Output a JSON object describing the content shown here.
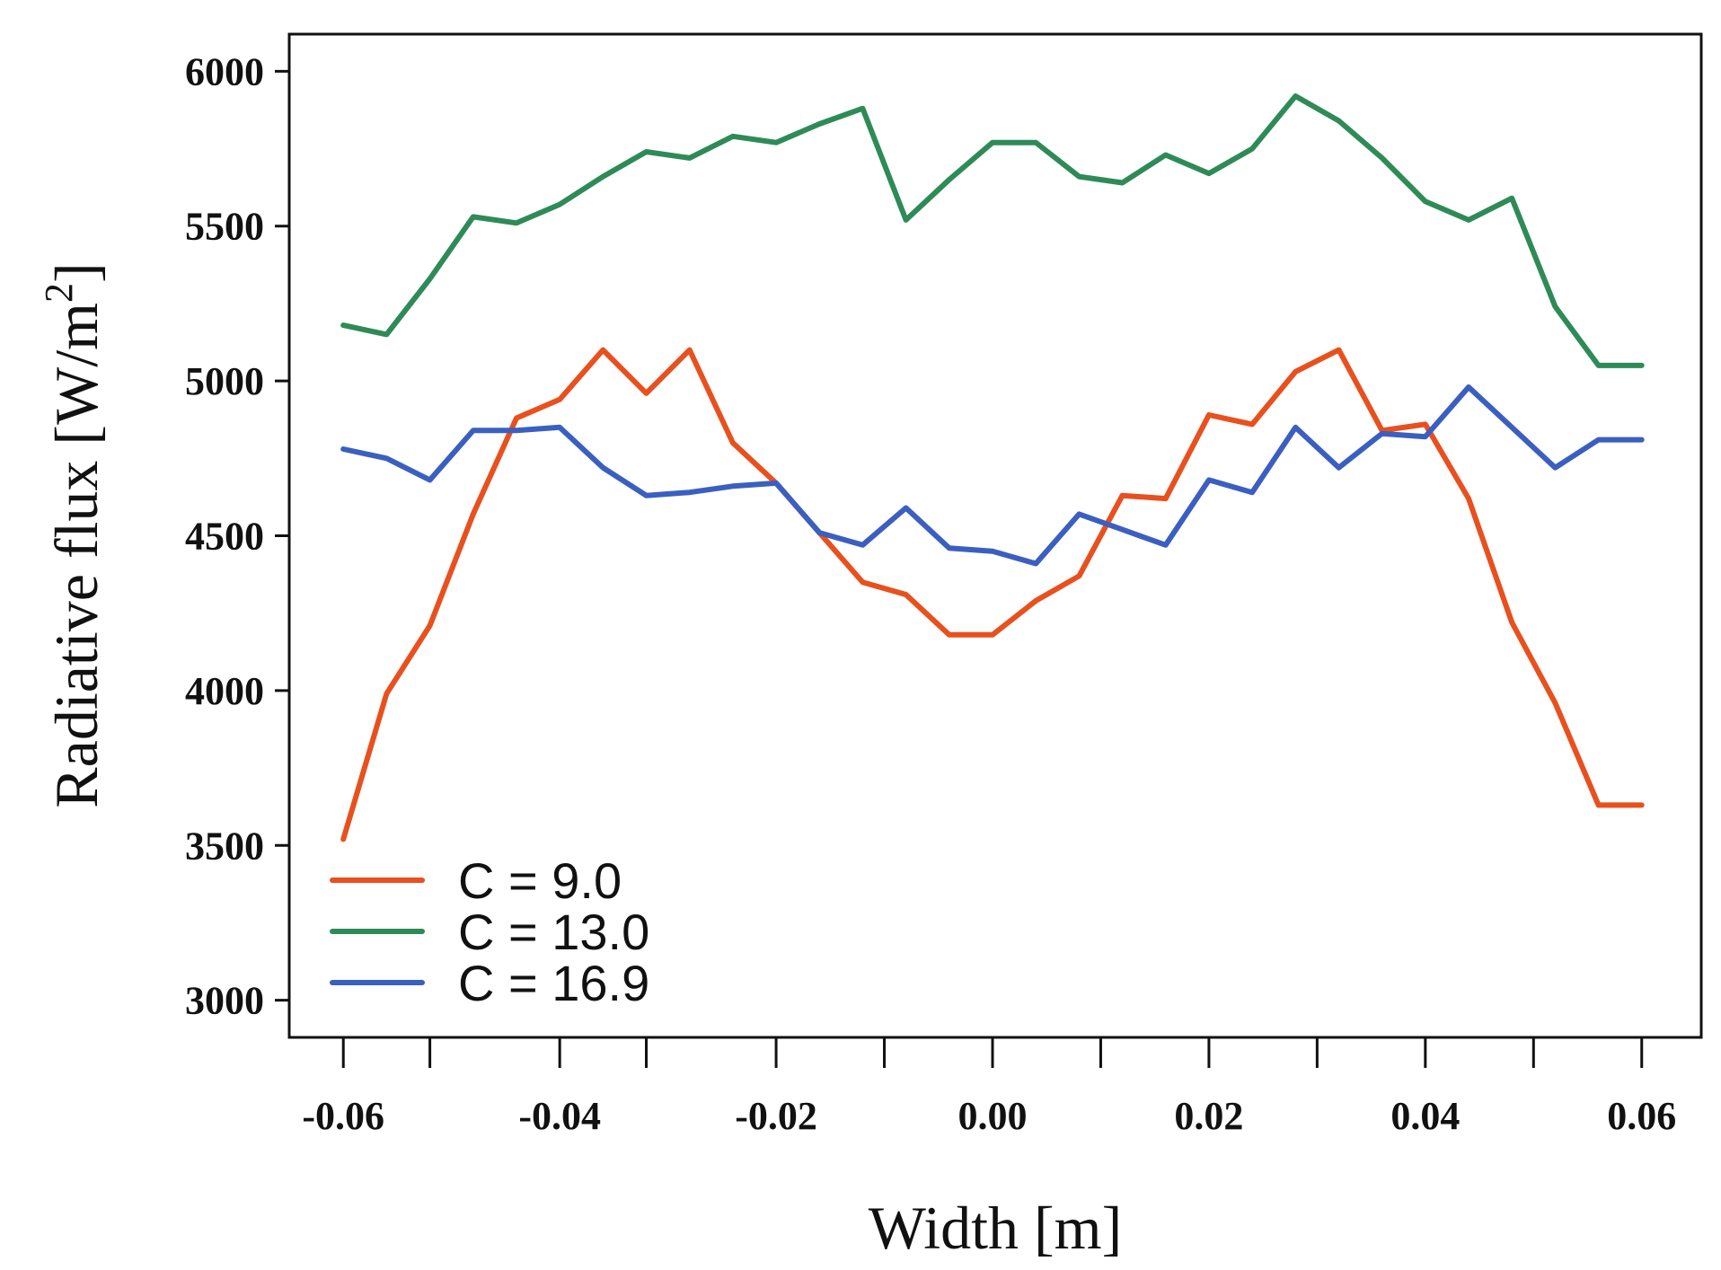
{
  "chart_data": {
    "type": "line",
    "title": "",
    "xlabel": "Width [m]",
    "ylabel": "Radiative flux [W/m",
    "ylabel_superscript": "2",
    "ylabel_close": "]",
    "xlim": [
      -0.065,
      0.0655
    ],
    "ylim": [
      2880,
      6120
    ],
    "x_ticks": [
      -0.06,
      -0.04,
      -0.02,
      0.0,
      0.02,
      0.04,
      0.06
    ],
    "x_tick_labels": [
      "-0.06",
      "-0.04",
      "-0.02",
      "0.00",
      "0.02",
      "0.04",
      "0.06"
    ],
    "x_minor_ticks": [
      -0.06,
      -0.052,
      -0.04,
      -0.032,
      -0.02,
      -0.01,
      0.0,
      0.01,
      0.02,
      0.03,
      0.04,
      0.05,
      0.06
    ],
    "y_ticks": [
      3000,
      3500,
      4000,
      4500,
      5000,
      5500,
      6000
    ],
    "y_tick_labels": [
      "3000",
      "3500",
      "4000",
      "4500",
      "5000",
      "5500",
      "6000"
    ],
    "grid": false,
    "legend_position": "bottom-left",
    "x": [
      -0.06,
      -0.056,
      -0.052,
      -0.048,
      -0.044,
      -0.04,
      -0.036,
      -0.032,
      -0.028,
      -0.024,
      -0.02,
      -0.016,
      -0.012,
      -0.008,
      -0.004,
      0.0,
      0.004,
      0.008,
      0.012,
      0.016,
      0.02,
      0.024,
      0.028,
      0.032,
      0.036,
      0.04,
      0.044,
      0.048,
      0.052,
      0.056,
      0.06
    ],
    "series": [
      {
        "name": "C = 9.0",
        "color": "#E8501E",
        "values": [
          3520,
          3990,
          4210,
          4570,
          4880,
          4940,
          5100,
          4960,
          5100,
          4800,
          4670,
          4510,
          4350,
          4310,
          4180,
          4180,
          4290,
          4370,
          4630,
          4620,
          4890,
          4860,
          5030,
          5100,
          4840,
          4860,
          4620,
          4220,
          3960,
          3630,
          3630
        ]
      },
      {
        "name": "C = 13.0",
        "color": "#2E8B57",
        "values": [
          5180,
          5150,
          5330,
          5530,
          5510,
          5570,
          5660,
          5740,
          5720,
          5790,
          5770,
          5830,
          5880,
          5520,
          5650,
          5770,
          5770,
          5660,
          5640,
          5730,
          5670,
          5750,
          5920,
          5840,
          5720,
          5580,
          5520,
          5590,
          5240,
          5050,
          5050
        ]
      },
      {
        "name": "C = 16.9",
        "color": "#3B5FC0",
        "values": [
          4780,
          4750,
          4680,
          4840,
          4840,
          4850,
          4720,
          4630,
          4640,
          4660,
          4670,
          4510,
          4470,
          4590,
          4460,
          4450,
          4410,
          4570,
          4520,
          4470,
          4680,
          4640,
          4850,
          4720,
          4830,
          4820,
          4980,
          4850,
          4720,
          4810,
          4810
        ]
      }
    ]
  }
}
